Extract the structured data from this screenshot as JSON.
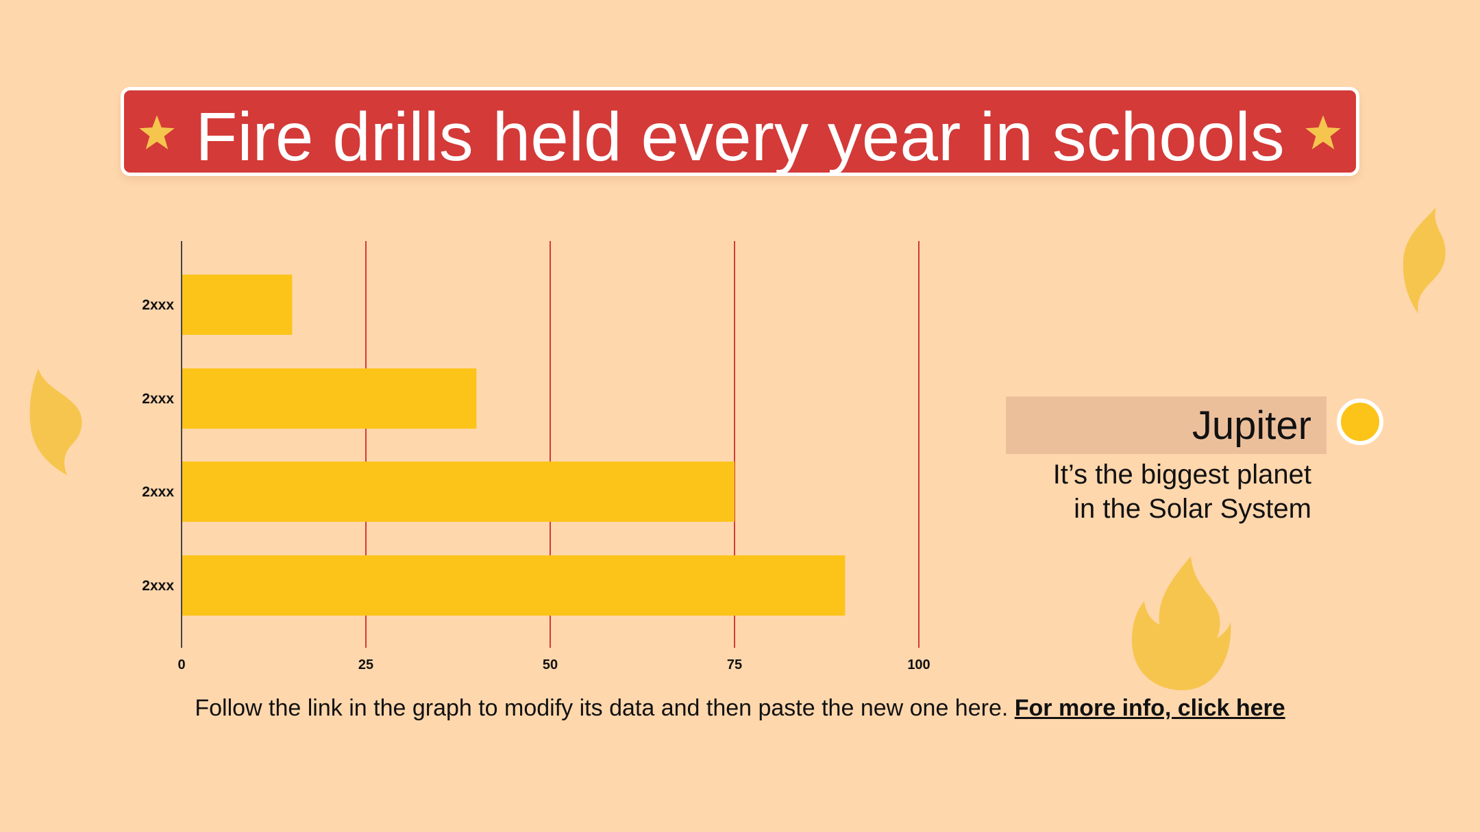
{
  "title": "Fire drills held every year in schools",
  "legend": {
    "title": "Jupiter",
    "line1": "It’s the biggest planet",
    "line2": "in the Solar System"
  },
  "footer": {
    "text": "Follow the link in the graph to modify its data and then paste the new one here. ",
    "link": "For more info, click here"
  },
  "colors": {
    "background": "#FFD7AD",
    "banner": "#D33A38",
    "bar": "#FCC419",
    "gridline": "#D33A38",
    "flame": "#F6C54E",
    "legend_box": "#ECBF9B"
  },
  "icons": [
    "star-icon",
    "flame-icon",
    "legend-dot"
  ],
  "chart_data": {
    "type": "bar",
    "orientation": "horizontal",
    "categories": [
      "2xxx",
      "2xxx",
      "2xxx",
      "2xxx"
    ],
    "values": [
      15,
      40,
      75,
      90
    ],
    "xlim": [
      0,
      100
    ],
    "xticks": [
      0,
      25,
      50,
      75,
      100
    ],
    "grid": true,
    "legend": "right"
  }
}
